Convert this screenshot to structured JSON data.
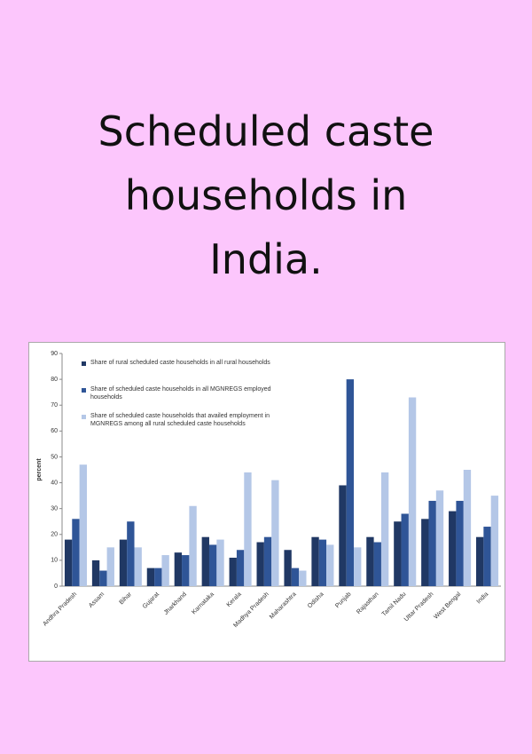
{
  "header": {
    "title": "Scheduled caste households in India."
  },
  "chart_data": {
    "type": "bar",
    "y_label": "percent",
    "categories": [
      "Andhra Pradesh",
      "Assam",
      "Bihar",
      "Gujarat",
      "Jharkhand",
      "Karnataka",
      "Kerala",
      "Madhya Pradesh",
      "Maharashtra",
      "Odisha",
      "Punjab",
      "Rajasthan",
      "Tamil Nadu",
      "Uttar Pradesh",
      "West Bengal",
      "India"
    ],
    "series": [
      {
        "name": "Share of rural scheduled caste households in all rural households",
        "color": "#203864",
        "values": [
          18,
          10,
          18,
          7,
          13,
          19,
          11,
          17,
          14,
          19,
          39,
          19,
          25,
          26,
          29,
          19
        ]
      },
      {
        "name": "Share of scheduled caste households in all MGNREGS employed households",
        "color": "#2f5597",
        "values": [
          26,
          6,
          25,
          7,
          12,
          16,
          14,
          19,
          7,
          18,
          80,
          17,
          28,
          33,
          33,
          23
        ]
      },
      {
        "name": "Share of scheduled caste households that availed employment in MGNREGS among all rural scheduled caste households",
        "color": "#b4c7e7",
        "values": [
          47,
          15,
          15,
          12,
          31,
          18,
          44,
          41,
          6,
          16,
          15,
          44,
          73,
          37,
          45,
          35
        ]
      }
    ],
    "ylim": [
      0,
      90
    ],
    "yticks": [
      0,
      10,
      20,
      30,
      40,
      50,
      60,
      70,
      80,
      90
    ]
  }
}
